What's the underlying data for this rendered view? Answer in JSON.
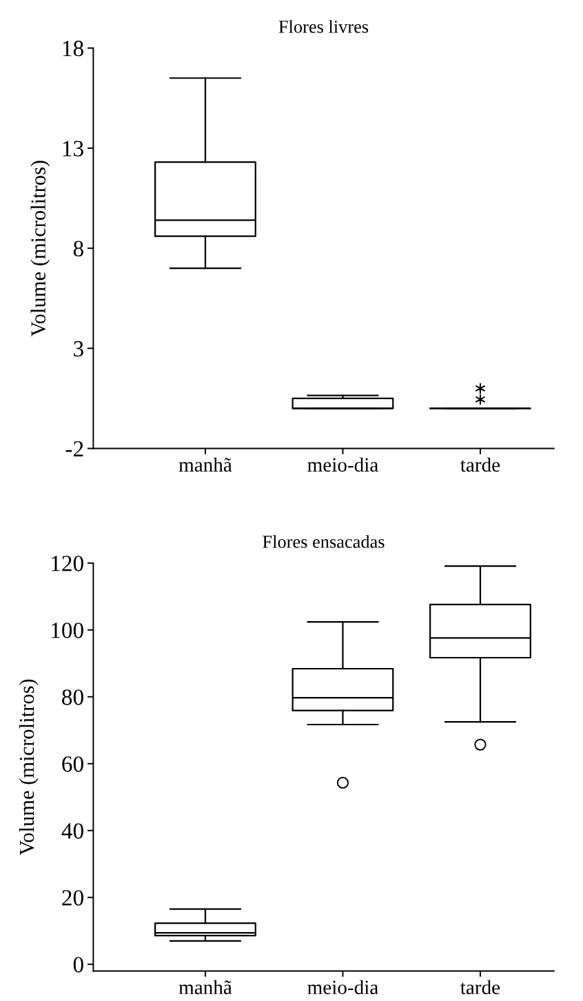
{
  "chart_data": [
    {
      "type": "box",
      "title": "Flores livres",
      "ylabel": "Volume (microlitros)",
      "categories": [
        "manhã",
        "meio-dia",
        "tarde"
      ],
      "boxes": [
        {
          "low": 7.0,
          "q1": 8.6,
          "median": 9.4,
          "q3": 12.3,
          "high": 16.5
        },
        {
          "low": 0,
          "q1": 0,
          "median": 0,
          "q3": 0.5,
          "high": 0.65
        },
        {
          "low": 0,
          "q1": 0,
          "median": 0,
          "q3": 0,
          "high": 0,
          "outliers": [
            1.0,
            0.45
          ]
        }
      ],
      "marker": "star",
      "ylim": [
        -2,
        18
      ],
      "yticks": [
        -2,
        3,
        8,
        13,
        18
      ],
      "grid": false
    },
    {
      "type": "box",
      "title": "Flores ensacadas",
      "ylabel": "Volume (microlitros)",
      "categories": [
        "manhã",
        "meio-dia",
        "tarde"
      ],
      "boxes": [
        {
          "low": 7.0,
          "q1": 8.6,
          "median": 9.4,
          "q3": 12.3,
          "high": 16.5
        },
        {
          "low": 71.7,
          "q1": 75.9,
          "median": 79.7,
          "q3": 88.4,
          "high": 102.4,
          "outliers": [
            54.3
          ]
        },
        {
          "low": 72.5,
          "q1": 91.7,
          "median": 97.6,
          "q3": 107.6,
          "high": 119.1,
          "outliers": [
            65.7
          ]
        }
      ],
      "marker": "circle",
      "ylim": [
        -2,
        120
      ],
      "yticks": [
        0,
        20,
        40,
        60,
        80,
        100,
        120
      ],
      "grid": false
    }
  ]
}
